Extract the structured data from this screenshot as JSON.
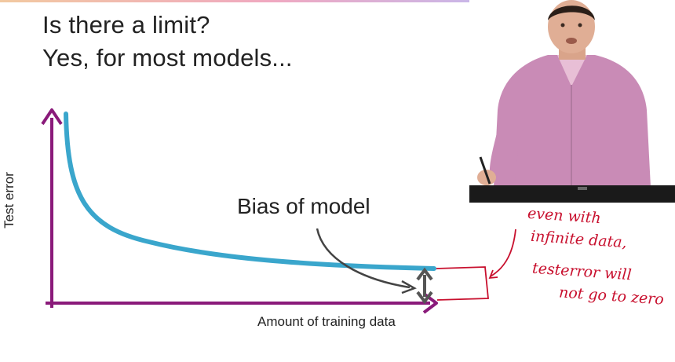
{
  "slide": {
    "title_line1": "Is there a limit?",
    "title_line2": "Yes, for most models..."
  },
  "plot": {
    "y_axis_label": "Test error",
    "x_axis_label": "Amount of training data",
    "annotation": "Bias of model",
    "curve": "decreasing, approaching a non-zero asymptote",
    "colors": {
      "axes": "#8a1a7a",
      "curve": "#3aa6cc",
      "bias_arrow": "#555555",
      "annotation_arrow": "#444444"
    }
  },
  "handwritten_notes": {
    "color": "#c8102e",
    "lines": [
      "even with",
      "infinite data,",
      "testerror will",
      "not go to zero"
    ]
  },
  "presenter_video": {
    "content": "presenter-video"
  }
}
